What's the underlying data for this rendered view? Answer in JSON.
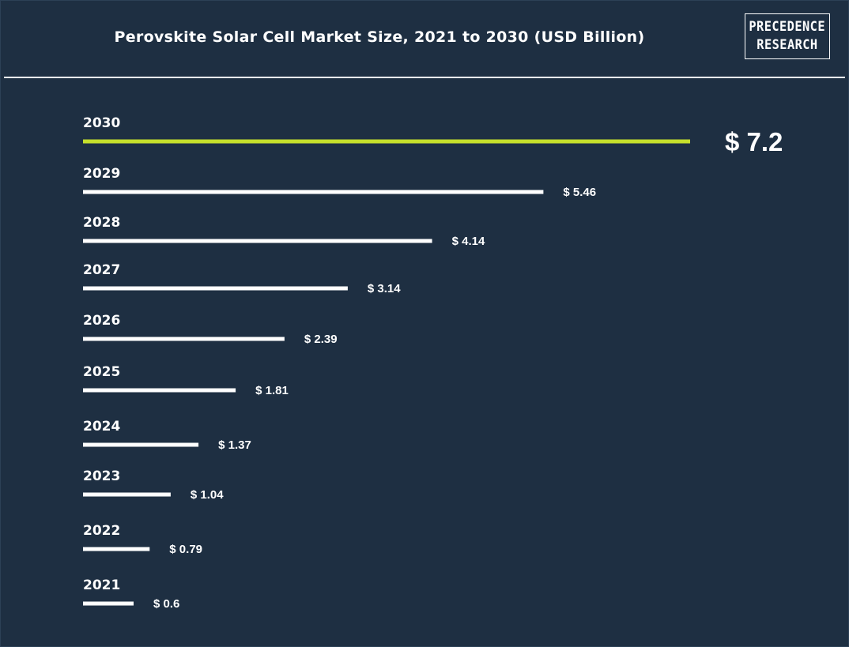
{
  "logo": {
    "line1": "PRECEDENCE",
    "line2": "RESEARCH"
  },
  "colors": {
    "background": "#1e2f42",
    "bar": "#ffffff",
    "highlight_bar": "#c6e02c",
    "text": "#ffffff"
  },
  "chart_data": {
    "type": "bar",
    "orientation": "horizontal",
    "title": "Perovskite Solar Cell Market Size, 2021 to 2030 (USD Billion)",
    "xlabel": "",
    "ylabel": "",
    "categories": [
      "2030",
      "2029",
      "2028",
      "2027",
      "2026",
      "2025",
      "2024",
      "2023",
      "2022",
      "2021"
    ],
    "values": [
      7.2,
      5.46,
      4.14,
      3.14,
      2.39,
      1.81,
      1.37,
      1.04,
      0.79,
      0.6
    ],
    "value_labels": [
      "$ 7.2",
      "$ 5.46",
      "$ 4.14",
      "$ 3.14",
      "$ 2.39",
      "$ 1.81",
      "$ 1.37",
      "$ 1.04",
      "$ 0.79",
      "$ 0.6"
    ],
    "highlight_category": "2030",
    "grid": false,
    "legend": "none"
  }
}
